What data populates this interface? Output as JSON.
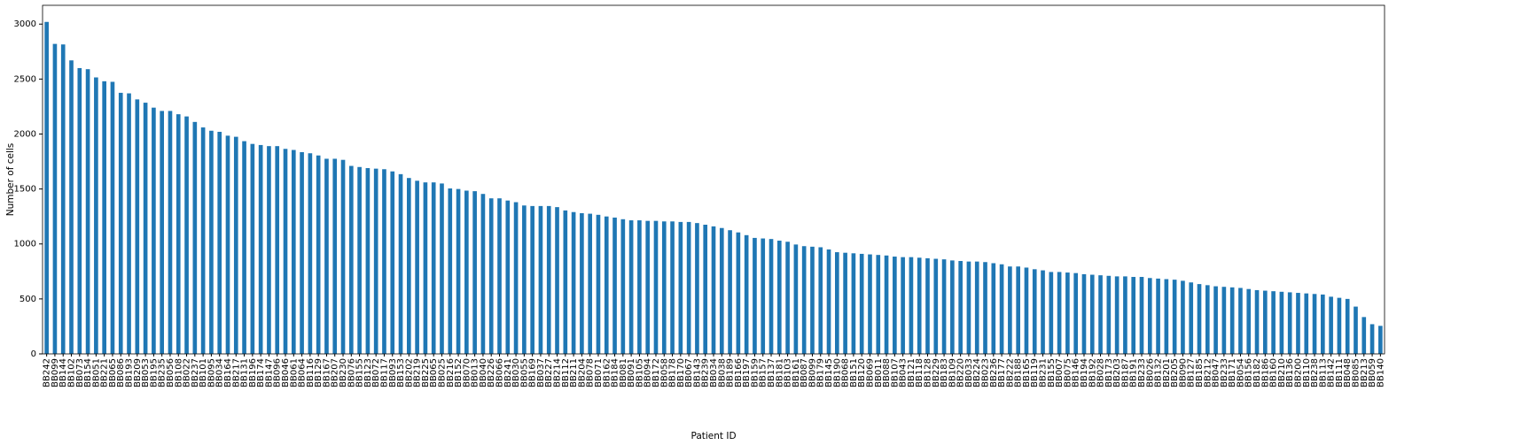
{
  "chart_data": {
    "type": "bar",
    "x_label": "Patient ID",
    "y_label": "Number of cells",
    "categories": [
      "BB242",
      "BB099",
      "BB144",
      "BB102",
      "BB073",
      "BB154",
      "BB051",
      "BB221",
      "BB065",
      "BB086",
      "BB193",
      "BB209",
      "BB053",
      "BB195",
      "BB235",
      "BB056",
      "BB108",
      "BB022",
      "BB237",
      "BB101",
      "BB095",
      "BB034",
      "BB164",
      "BB217",
      "BB131",
      "BB196",
      "BB174",
      "BB147",
      "BB096",
      "BB046",
      "BB061",
      "BB064",
      "BB116",
      "BB129",
      "BB167",
      "BB207",
      "BB230",
      "BB076",
      "BB155",
      "BB123",
      "BB072",
      "BB117",
      "BB093",
      "BB153",
      "BB202",
      "BB219",
      "BB225",
      "BB065",
      "BB025",
      "BB216",
      "BB152",
      "BB070",
      "BB013",
      "BB040",
      "BB226",
      "BB066",
      "BB241",
      "BB030",
      "BB055",
      "BB169",
      "BB037",
      "BB227",
      "BB214",
      "BB112",
      "BB211",
      "BB204",
      "BB078",
      "BB071",
      "BB162",
      "BB184",
      "BB081",
      "BB091",
      "BB105",
      "BB094",
      "BB172",
      "BB058",
      "BB178",
      "BB170",
      "BB067",
      "BB143",
      "BB239",
      "BB034",
      "BB038",
      "BB189",
      "BB166",
      "BB197",
      "BB159",
      "BB157",
      "BB137",
      "BB181",
      "BB103",
      "BB161",
      "BB087",
      "BB099",
      "BB179",
      "BB145",
      "BB190",
      "BB068",
      "BB151",
      "BB120",
      "BB069",
      "BB011",
      "BB088",
      "BB107",
      "BB043",
      "BB121",
      "BB118",
      "BB128",
      "BB229",
      "BB183",
      "BB109",
      "BB220",
      "BB033",
      "BB224",
      "BB023",
      "BB236",
      "BB177",
      "BB222",
      "BB188",
      "BB165",
      "BB119",
      "BB231",
      "BB155",
      "BB007",
      "BB075",
      "BB146",
      "BB194",
      "BB192",
      "BB028",
      "BB173",
      "BB203",
      "BB187",
      "BB191",
      "BB233",
      "BB026",
      "BB132",
      "BB201",
      "BB205",
      "BB090",
      "BB127",
      "BB185",
      "BB212",
      "BB047",
      "BB233",
      "BB171",
      "BB054",
      "BB156",
      "BB182",
      "BB186",
      "BB160",
      "BB210",
      "BB136",
      "BB200",
      "BB110",
      "BB238",
      "BB113",
      "BB142",
      "BB111",
      "BB048",
      "BB085",
      "BB213",
      "BB059",
      "BB140"
    ],
    "values": [
      3020,
      2820,
      2815,
      2670,
      2600,
      2590,
      2515,
      2480,
      2475,
      2375,
      2370,
      2315,
      2285,
      2240,
      2210,
      2210,
      2180,
      2160,
      2110,
      2060,
      2030,
      2020,
      1985,
      1975,
      1935,
      1910,
      1900,
      1890,
      1890,
      1865,
      1855,
      1835,
      1825,
      1805,
      1775,
      1775,
      1765,
      1710,
      1700,
      1690,
      1685,
      1680,
      1660,
      1635,
      1600,
      1575,
      1560,
      1560,
      1550,
      1505,
      1500,
      1485,
      1480,
      1455,
      1415,
      1415,
      1395,
      1380,
      1350,
      1345,
      1345,
      1345,
      1335,
      1305,
      1290,
      1280,
      1275,
      1265,
      1250,
      1240,
      1225,
      1215,
      1215,
      1210,
      1210,
      1205,
      1205,
      1200,
      1200,
      1190,
      1175,
      1160,
      1145,
      1125,
      1105,
      1080,
      1055,
      1050,
      1045,
      1030,
      1020,
      995,
      980,
      975,
      970,
      950,
      925,
      920,
      915,
      910,
      905,
      900,
      895,
      885,
      880,
      880,
      875,
      870,
      865,
      860,
      850,
      845,
      840,
      840,
      835,
      825,
      815,
      795,
      795,
      785,
      770,
      760,
      745,
      745,
      740,
      735,
      725,
      720,
      715,
      710,
      705,
      705,
      700,
      700,
      690,
      685,
      680,
      675,
      665,
      650,
      635,
      625,
      615,
      610,
      605,
      600,
      590,
      580,
      575,
      570,
      565,
      560,
      555,
      550,
      545,
      540,
      520,
      510,
      500,
      430,
      335,
      270,
      255
    ],
    "color": "#1f77b4",
    "ylim": [
      0,
      3171
    ],
    "yticks": [
      0,
      500,
      1000,
      1500,
      2000,
      2500,
      3000
    ]
  }
}
